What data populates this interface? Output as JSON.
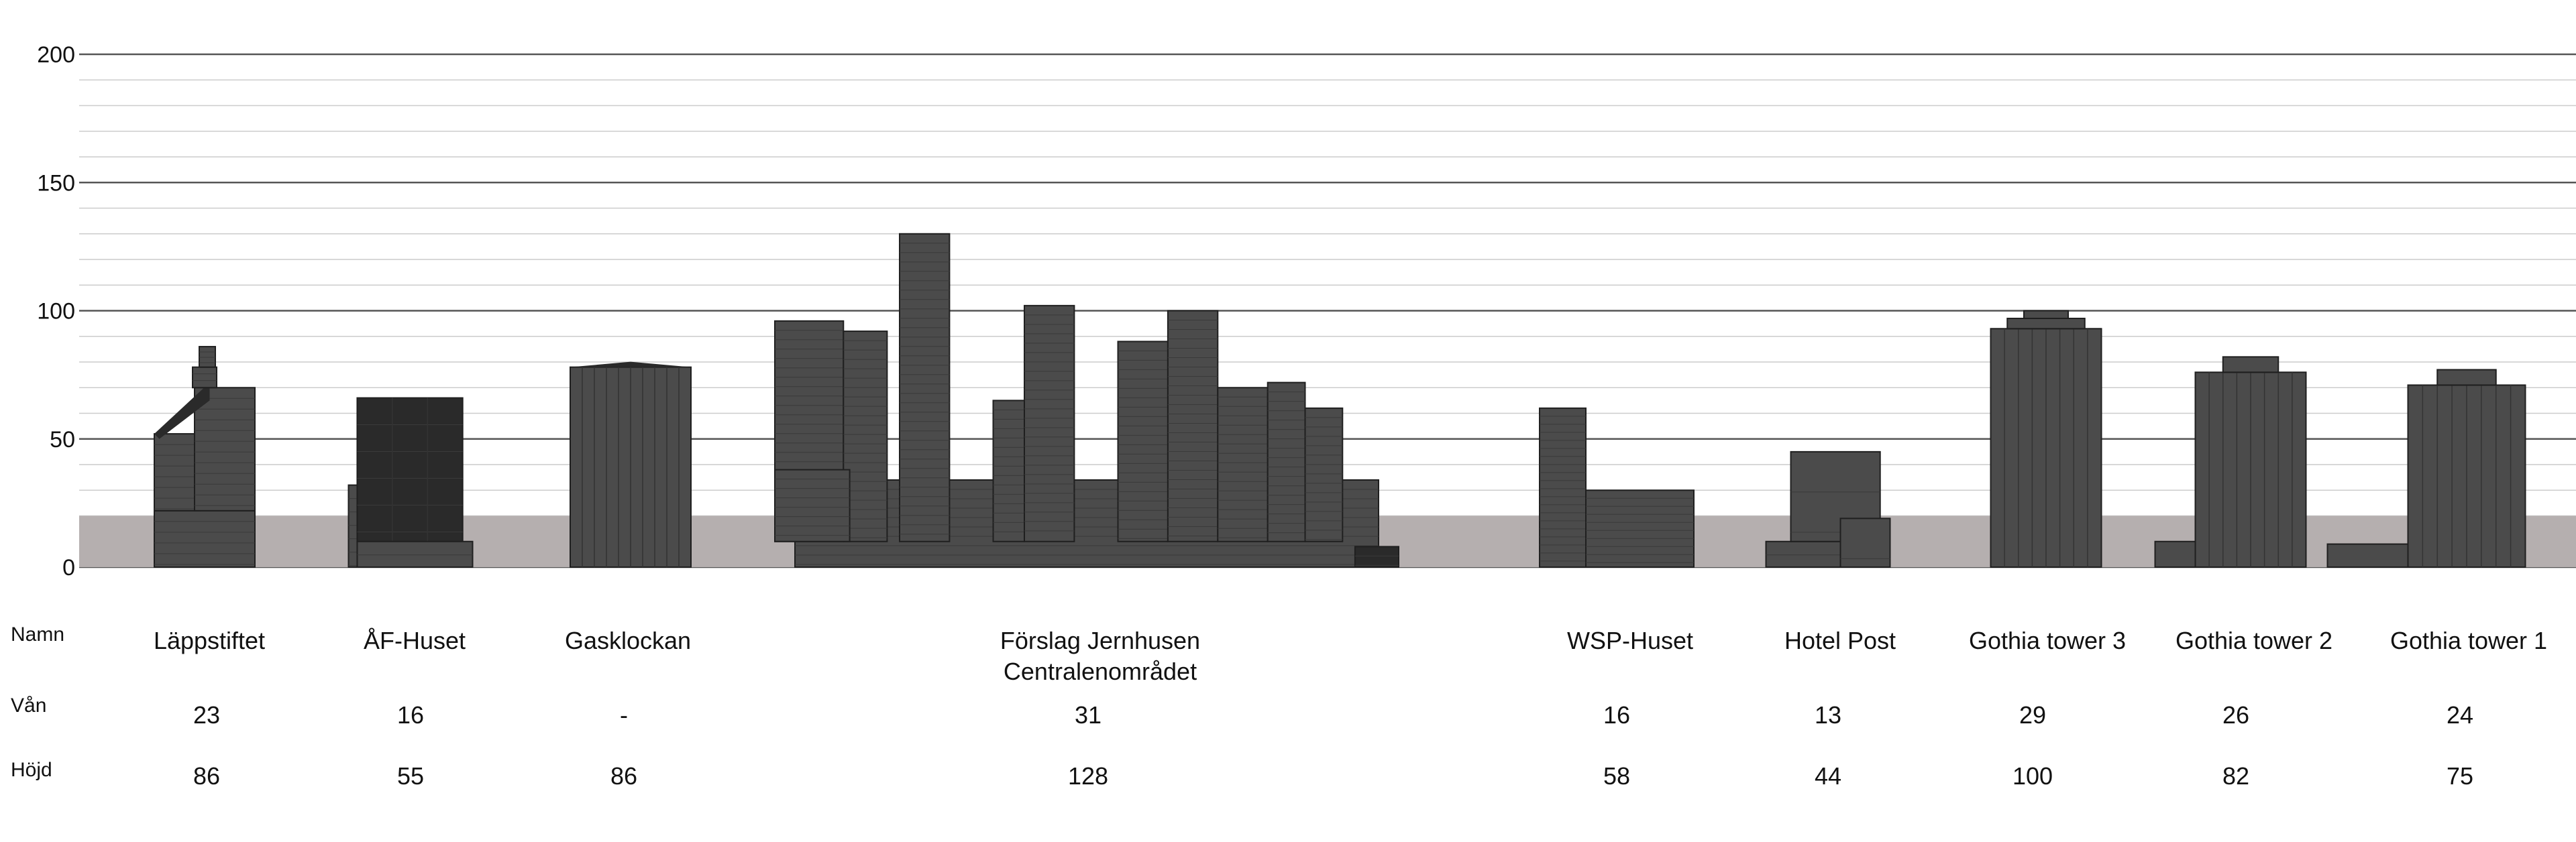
{
  "chart_data": {
    "type": "bar",
    "title": "",
    "xlabel": "",
    "ylabel": "",
    "ylim": [
      0,
      200
    ],
    "yticks": [
      0,
      50,
      100,
      150,
      200
    ],
    "grid": true,
    "ground_band_height": 20,
    "row_labels": [
      "Namn",
      "Vån",
      "Höjd"
    ],
    "categories": [
      "Läppstiftet",
      "ÅF-Huset",
      "Gasklockan",
      "Förslag Jernhusen\nCentralenområdet",
      "WSP-Huset",
      "Hotel Post",
      "Gothia tower 3",
      "Gothia tower 2",
      "Gothia tower 1"
    ],
    "floors": [
      "23",
      "16",
      "-",
      "31",
      "16",
      "13",
      "29",
      "26",
      "24"
    ],
    "values": [
      86,
      55,
      86,
      128,
      58,
      44,
      100,
      82,
      75
    ]
  },
  "colors": {
    "building": "#4b4b4b",
    "building_dark": "#2a2a2a",
    "building_line": "#1f1f1f",
    "ground_band": "#b5afaf",
    "major_grid": "#555555",
    "minor_grid": "#cccccc",
    "axis": "#222222"
  }
}
